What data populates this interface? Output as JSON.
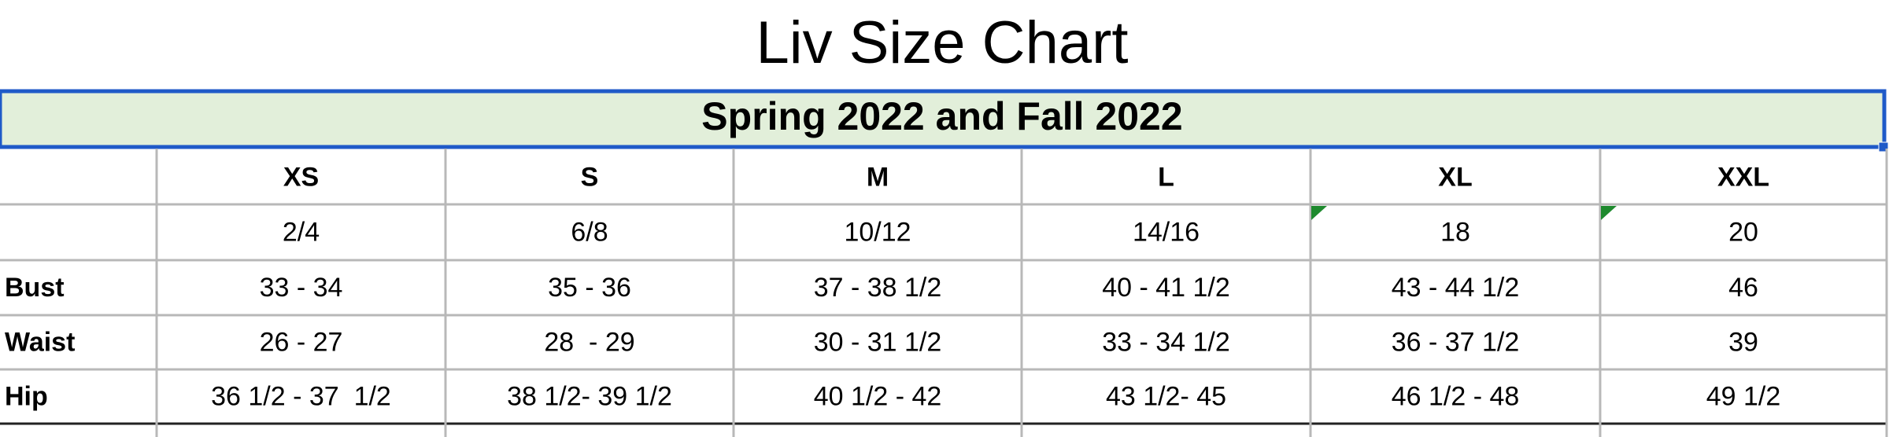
{
  "title": "Liv Size Chart",
  "subtitle": "Spring 2022 and Fall 2022",
  "table": {
    "sizes": [
      "XS",
      "S",
      "M",
      "L",
      "XL",
      "XXL"
    ],
    "numeric_sizes": [
      "2/4",
      "6/8",
      "10/12",
      "14/16",
      "18",
      "20"
    ],
    "measurements": [
      {
        "label": "Bust",
        "values": [
          "33 - 34",
          "35 - 36",
          "37 - 38 1/2",
          "40 - 41 1/2",
          "43 - 44 1/2",
          "46"
        ]
      },
      {
        "label": "Waist",
        "values": [
          "26 - 27",
          "28  - 29",
          "30 - 31 1/2",
          "33 - 34 1/2",
          "36 - 37 1/2",
          "39"
        ]
      },
      {
        "label": "Hip",
        "values": [
          "36 1/2 - 37  1/2",
          "38 1/2- 39 1/2",
          "40 1/2 - 42",
          "43 1/2- 45",
          "46 1/2 - 48",
          "49 1/2"
        ]
      }
    ]
  }
}
